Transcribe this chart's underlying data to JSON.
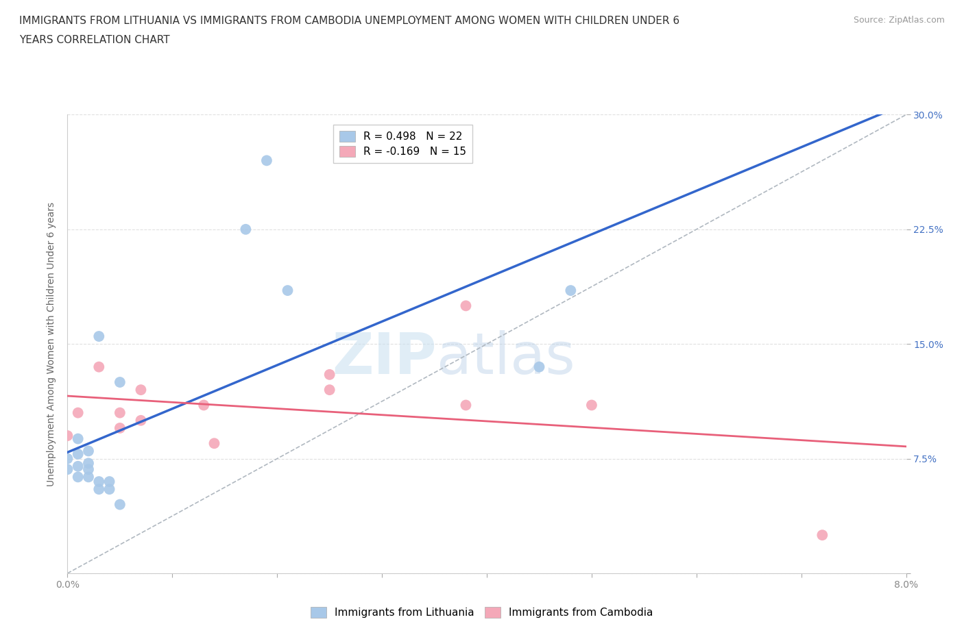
{
  "title_line1": "IMMIGRANTS FROM LITHUANIA VS IMMIGRANTS FROM CAMBODIA UNEMPLOYMENT AMONG WOMEN WITH CHILDREN UNDER 6",
  "title_line2": "YEARS CORRELATION CHART",
  "source": "Source: ZipAtlas.com",
  "ylabel": "Unemployment Among Women with Children Under 6 years",
  "xlim": [
    0.0,
    0.08
  ],
  "ylim": [
    0.0,
    0.3
  ],
  "xticks": [
    0.0,
    0.01,
    0.02,
    0.03,
    0.04,
    0.05,
    0.06,
    0.07,
    0.08
  ],
  "xticklabels": [
    "0.0%",
    "",
    "",
    "",
    "",
    "",
    "",
    "",
    "8.0%"
  ],
  "yticks": [
    0.0,
    0.075,
    0.15,
    0.225,
    0.3
  ],
  "yticklabels_right": [
    "",
    "7.5%",
    "15.0%",
    "22.5%",
    "30.0%"
  ],
  "legend_r1": "R = 0.498",
  "legend_n1": "N = 22",
  "legend_r2": "R = -0.169",
  "legend_n2": "N = 15",
  "color_lithuania": "#a8c8e8",
  "color_cambodia": "#f4a8b8",
  "trendline1_color": "#3366cc",
  "trendline2_color": "#e8607a",
  "dashed_line_color": "#b0b8c0",
  "watermark_zip": "ZIP",
  "watermark_atlas": "atlas",
  "scatter_lithuania_x": [
    0.0,
    0.0,
    0.001,
    0.001,
    0.001,
    0.001,
    0.002,
    0.002,
    0.002,
    0.002,
    0.003,
    0.003,
    0.003,
    0.004,
    0.004,
    0.005,
    0.005,
    0.017,
    0.019,
    0.021,
    0.045,
    0.048
  ],
  "scatter_lithuania_y": [
    0.068,
    0.075,
    0.063,
    0.07,
    0.078,
    0.088,
    0.063,
    0.068,
    0.072,
    0.08,
    0.055,
    0.06,
    0.155,
    0.055,
    0.06,
    0.125,
    0.045,
    0.225,
    0.27,
    0.185,
    0.135,
    0.185
  ],
  "scatter_cambodia_x": [
    0.0,
    0.001,
    0.003,
    0.005,
    0.005,
    0.007,
    0.007,
    0.013,
    0.014,
    0.025,
    0.025,
    0.038,
    0.038,
    0.05,
    0.072
  ],
  "scatter_cambodia_y": [
    0.09,
    0.105,
    0.135,
    0.095,
    0.105,
    0.12,
    0.1,
    0.11,
    0.085,
    0.13,
    0.12,
    0.11,
    0.175,
    0.11,
    0.025
  ],
  "marker_size": 130,
  "background_color": "#ffffff",
  "grid_color": "#e0e0e0",
  "right_tick_color": "#4472c4",
  "ylabel_color": "#666666",
  "xtick_color": "#888888"
}
